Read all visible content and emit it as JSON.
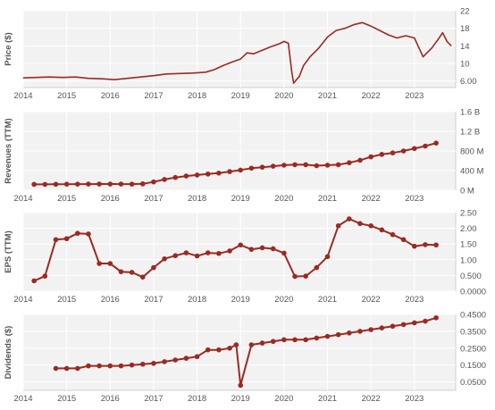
{
  "colors": {
    "line": "#9b2a22",
    "panel": "#f2f2f2",
    "grid": "#ffffff",
    "text": "#555555"
  },
  "chart_data": [
    {
      "type": "line",
      "ylabel": "Price ($)",
      "x_ticks": [
        "2014",
        "2015",
        "2016",
        "2017",
        "2018",
        "2019",
        "2020",
        "2021",
        "2022",
        "2023"
      ],
      "y_ticks": [
        6.0,
        10,
        14,
        18,
        22
      ],
      "y_tick_labels": [
        "6.00",
        "10",
        "14",
        "18",
        "22"
      ],
      "ylim": [
        4.5,
        22
      ],
      "axis_side": "right",
      "grid": true,
      "series": [
        {
          "x": [
            2014.0,
            2014.3,
            2014.6,
            2014.9,
            2015.2,
            2015.5,
            2015.8,
            2016.1,
            2016.4,
            2016.7,
            2017.0,
            2017.3,
            2017.6,
            2017.9,
            2018.2,
            2018.4,
            2018.6,
            2018.8,
            2019.0,
            2019.15,
            2019.3,
            2019.5,
            2019.7,
            2019.9,
            2020.0,
            2020.1,
            2020.18,
            2020.22,
            2020.28,
            2020.35,
            2020.45,
            2020.6,
            2020.8,
            2021.0,
            2021.2,
            2021.4,
            2021.6,
            2021.8,
            2022.0,
            2022.2,
            2022.4,
            2022.6,
            2022.8,
            2023.0,
            2023.2,
            2023.4,
            2023.55,
            2023.65,
            2023.75,
            2023.85
          ],
          "values": [
            6.7,
            6.8,
            6.9,
            6.8,
            6.9,
            6.6,
            6.5,
            6.3,
            6.6,
            6.9,
            7.2,
            7.6,
            7.7,
            7.8,
            8.0,
            8.6,
            9.5,
            10.3,
            11.0,
            12.4,
            12.2,
            13.0,
            13.8,
            14.5,
            15.0,
            14.6,
            8.0,
            5.5,
            6.2,
            7.0,
            9.5,
            11.5,
            13.5,
            16.0,
            17.5,
            18.0,
            18.8,
            19.3,
            18.5,
            17.5,
            16.5,
            15.8,
            16.3,
            15.8,
            11.5,
            13.5,
            15.5,
            17.0,
            15.0,
            14.0
          ]
        }
      ]
    },
    {
      "type": "line",
      "ylabel": "Revenues (TTM)",
      "x_ticks": [
        "2014",
        "2015",
        "2016",
        "2017",
        "2018",
        "2019",
        "2020",
        "2021",
        "2022",
        "2023"
      ],
      "y_ticks": [
        0,
        400,
        800,
        1200,
        1600
      ],
      "y_tick_labels": [
        "0 M",
        "400 M",
        "800 M",
        "1.2 B",
        "1.6 B"
      ],
      "ylim": [
        0,
        1600
      ],
      "axis_side": "right",
      "grid": true,
      "series": [
        {
          "x": [
            2014.25,
            2014.5,
            2014.75,
            2015.0,
            2015.25,
            2015.5,
            2015.75,
            2016.0,
            2016.25,
            2016.5,
            2016.75,
            2017.0,
            2017.25,
            2017.5,
            2017.75,
            2018.0,
            2018.25,
            2018.5,
            2018.75,
            2019.0,
            2019.25,
            2019.5,
            2019.75,
            2020.0,
            2020.25,
            2020.5,
            2020.75,
            2021.0,
            2021.25,
            2021.5,
            2021.75,
            2022.0,
            2022.25,
            2022.5,
            2022.75,
            2023.0,
            2023.25,
            2023.5
          ],
          "values": [
            120,
            120,
            122,
            124,
            125,
            126,
            127,
            127,
            126,
            125,
            130,
            170,
            220,
            260,
            290,
            310,
            330,
            350,
            380,
            410,
            450,
            470,
            490,
            510,
            520,
            520,
            500,
            510,
            520,
            560,
            610,
            680,
            730,
            760,
            800,
            850,
            900,
            960
          ]
        }
      ]
    },
    {
      "type": "line",
      "ylabel": "EPS (TTM)",
      "x_ticks": [
        "2014",
        "2015",
        "2016",
        "2017",
        "2018",
        "2019",
        "2020",
        "2021",
        "2022",
        "2023"
      ],
      "y_ticks": [
        0.0,
        0.5,
        1.0,
        1.5,
        2.0,
        2.5
      ],
      "y_tick_labels": [
        "0.0000",
        "0.500",
        "1.00",
        "1.50",
        "2.00",
        "2.50"
      ],
      "ylim": [
        0,
        2.5
      ],
      "axis_side": "right",
      "grid": true,
      "series": [
        {
          "x": [
            2014.25,
            2014.5,
            2014.75,
            2015.0,
            2015.25,
            2015.5,
            2015.75,
            2016.0,
            2016.25,
            2016.5,
            2016.75,
            2017.0,
            2017.25,
            2017.5,
            2017.75,
            2018.0,
            2018.25,
            2018.5,
            2018.75,
            2019.0,
            2019.25,
            2019.5,
            2019.75,
            2020.0,
            2020.25,
            2020.5,
            2020.75,
            2021.0,
            2021.25,
            2021.5,
            2021.75,
            2022.0,
            2022.25,
            2022.5,
            2022.75,
            2023.0,
            2023.25,
            2023.5
          ],
          "values": [
            0.33,
            0.48,
            1.64,
            1.67,
            1.84,
            1.82,
            0.88,
            0.88,
            0.62,
            0.6,
            0.45,
            0.75,
            1.03,
            1.13,
            1.22,
            1.12,
            1.22,
            1.2,
            1.28,
            1.47,
            1.33,
            1.38,
            1.35,
            1.21,
            0.47,
            0.48,
            0.75,
            1.1,
            2.08,
            2.3,
            2.15,
            2.08,
            1.95,
            1.8,
            1.64,
            1.43,
            1.48,
            1.47
          ]
        }
      ]
    },
    {
      "type": "line",
      "ylabel": "Dividends ($)",
      "x_ticks": [
        "2014",
        "2015",
        "2016",
        "2017",
        "2018",
        "2019",
        "2020",
        "2021",
        "2022",
        "2023"
      ],
      "y_ticks": [
        0.05,
        0.15,
        0.25,
        0.35,
        0.45
      ],
      "y_tick_labels": [
        "0.0500",
        "0.1500",
        "0.2500",
        "0.3500",
        "0.4500"
      ],
      "ylim": [
        0,
        0.45
      ],
      "axis_side": "right",
      "grid": true,
      "series": [
        {
          "x": [
            2014.75,
            2015.0,
            2015.25,
            2015.5,
            2015.75,
            2016.0,
            2016.25,
            2016.5,
            2016.75,
            2017.0,
            2017.25,
            2017.5,
            2017.75,
            2018.0,
            2018.25,
            2018.5,
            2018.75,
            2018.9,
            2019.0,
            2019.25,
            2019.5,
            2019.75,
            2020.0,
            2020.25,
            2020.5,
            2020.75,
            2021.0,
            2021.25,
            2021.5,
            2021.75,
            2022.0,
            2022.25,
            2022.5,
            2022.75,
            2023.0,
            2023.25,
            2023.5
          ],
          "values": [
            0.13,
            0.13,
            0.13,
            0.145,
            0.145,
            0.145,
            0.145,
            0.15,
            0.155,
            0.16,
            0.17,
            0.18,
            0.19,
            0.2,
            0.24,
            0.24,
            0.25,
            0.27,
            0.03,
            0.27,
            0.28,
            0.29,
            0.3,
            0.3,
            0.3,
            0.31,
            0.32,
            0.33,
            0.34,
            0.35,
            0.36,
            0.37,
            0.38,
            0.39,
            0.4,
            0.41,
            0.43
          ]
        }
      ]
    }
  ]
}
